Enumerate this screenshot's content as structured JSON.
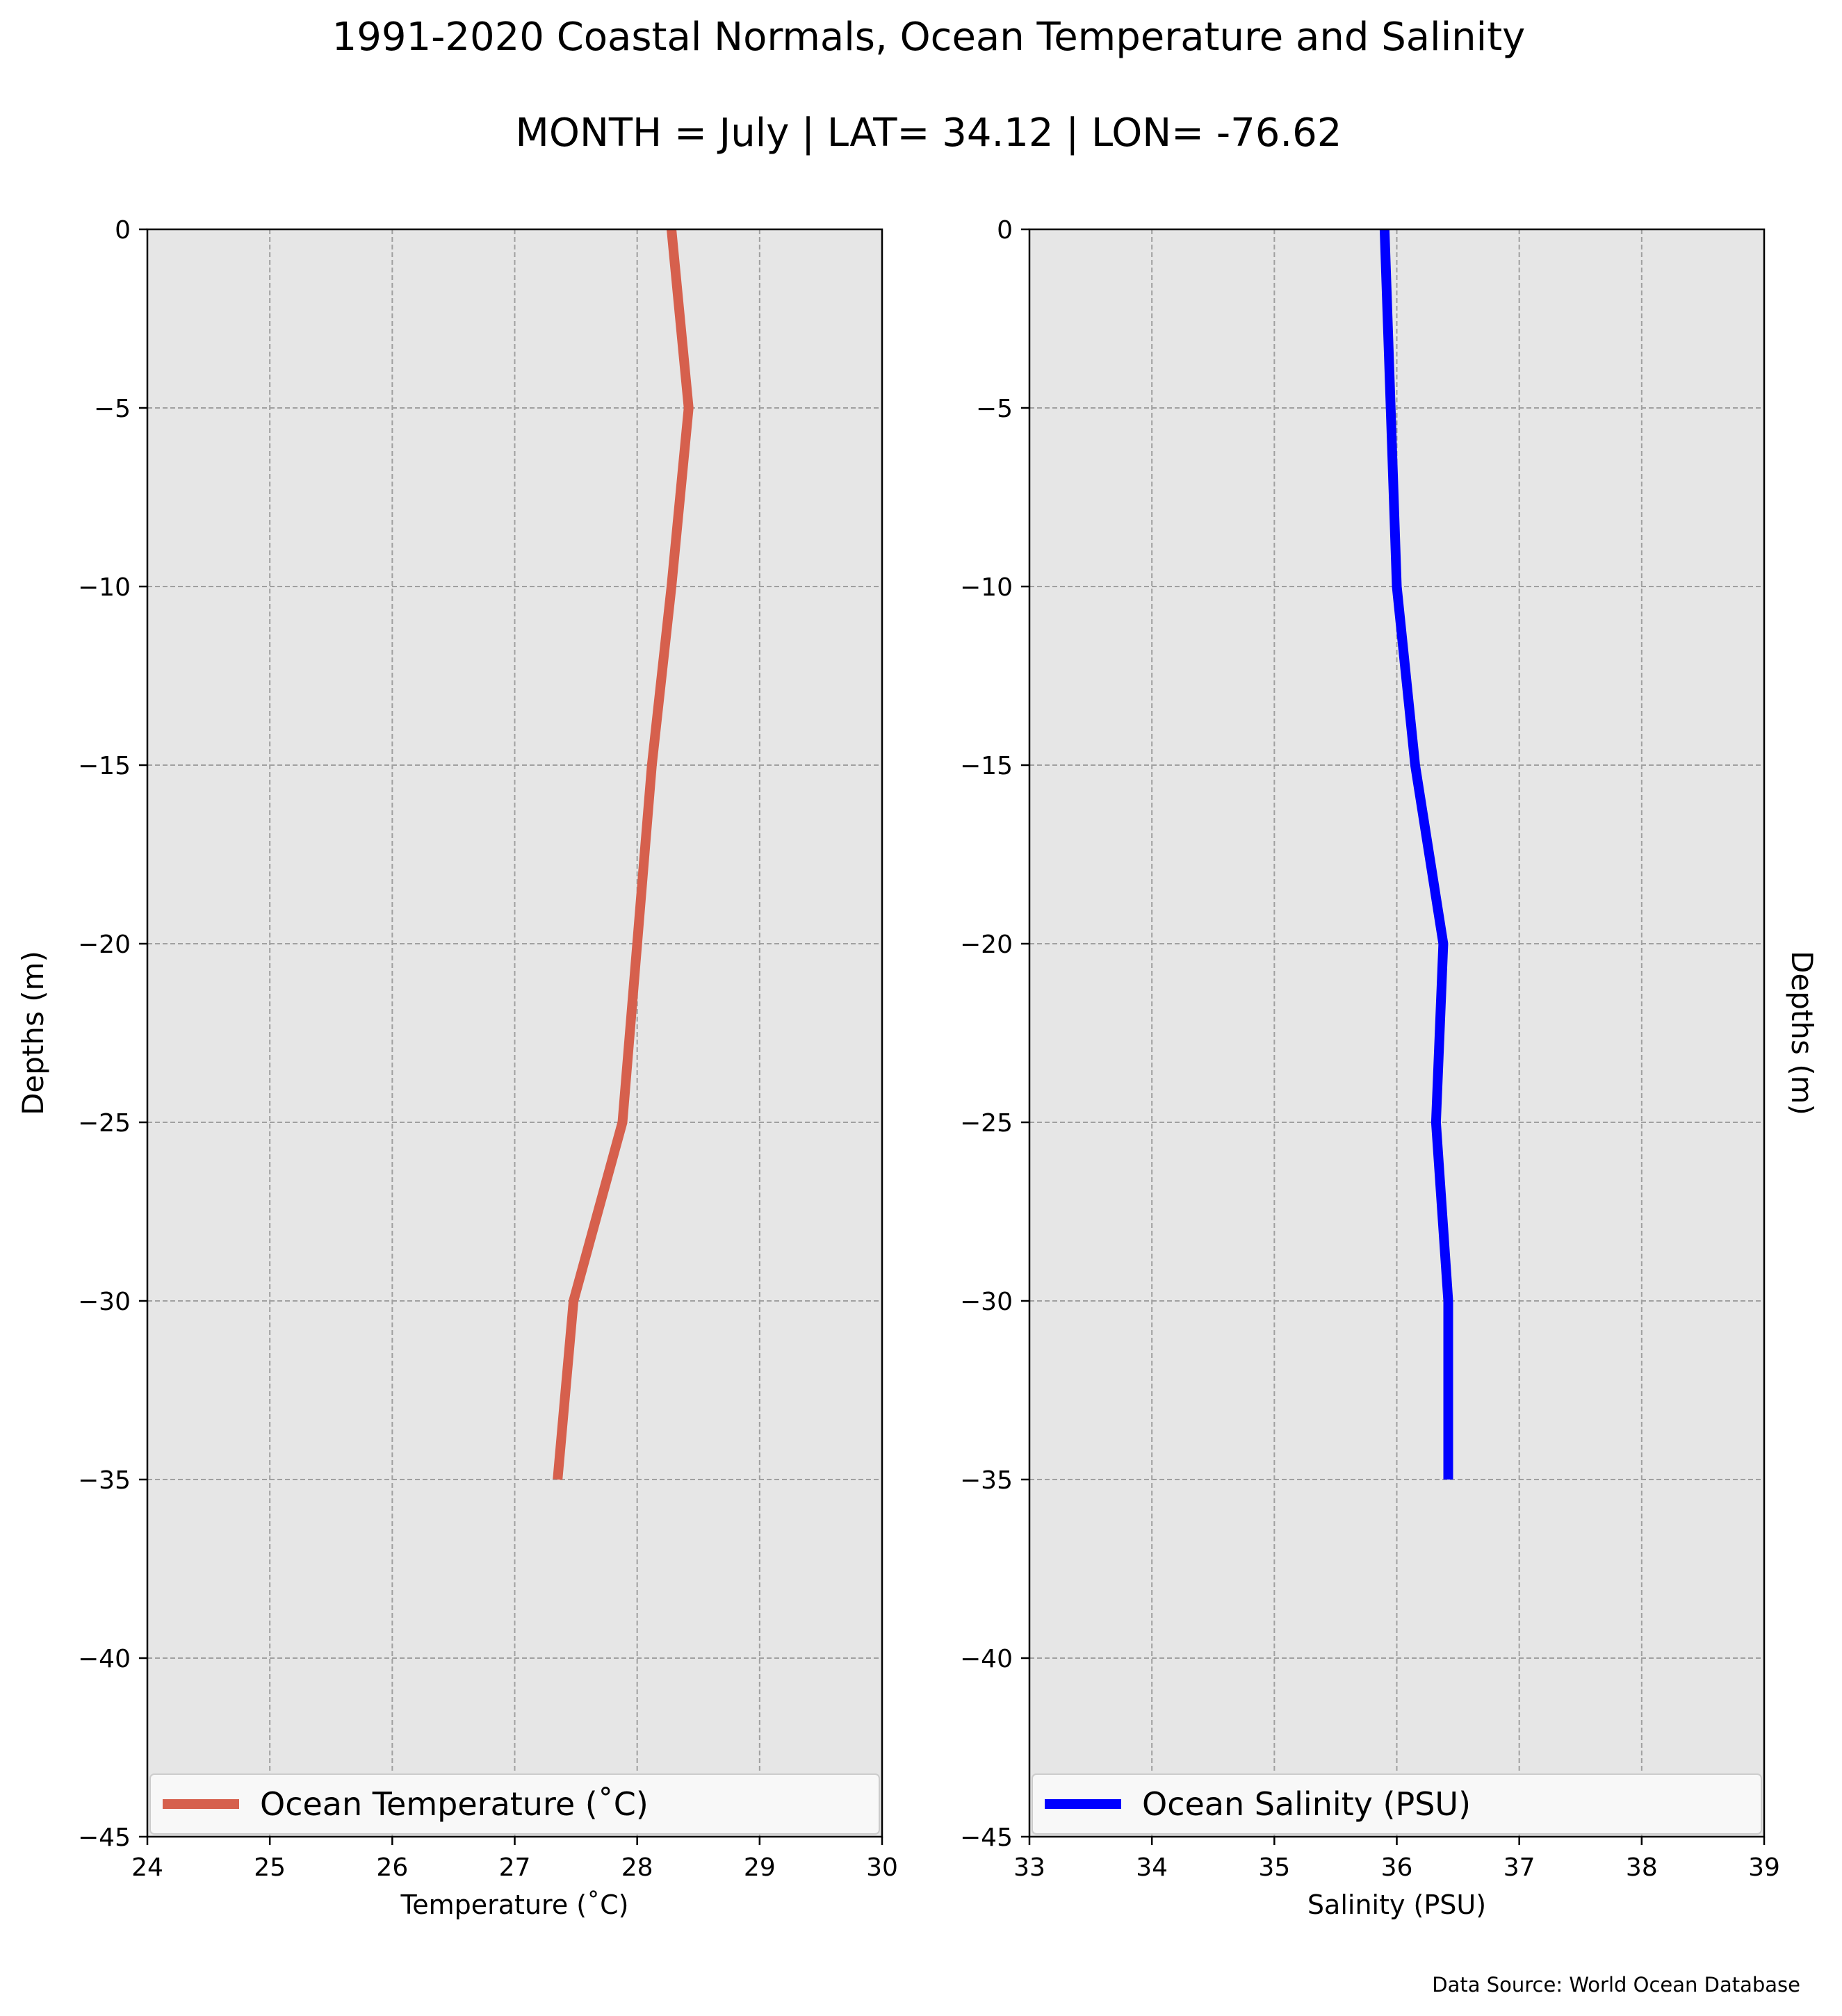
{
  "title": "1991-2020 Coastal Normals, Ocean Temperature and Salinity",
  "subtitle": "MONTH = July | LAT= 34.12 | LON= -76.62",
  "source_note": "Data Source: World Ocean Database",
  "chart_data": [
    {
      "type": "line",
      "xlabel": "Temperature ($^\\circ$C)",
      "xlabel_display": "Temperature (˚C)",
      "ylabel": "Depths (m)",
      "xlim": [
        24,
        30
      ],
      "ylim": [
        -45,
        0
      ],
      "xticks": [
        24,
        25,
        26,
        27,
        28,
        29,
        30
      ],
      "yticks": [
        0,
        -5,
        -10,
        -15,
        -20,
        -25,
        -30,
        -35,
        -40,
        -45
      ],
      "grid": true,
      "legend_position": "bottom",
      "series": [
        {
          "name": "Ocean Temperature (˚C)",
          "color": "#d6604d",
          "x": [
            28.28,
            28.42,
            28.28,
            28.12,
            28.0,
            27.88,
            27.48,
            27.35
          ],
          "y": [
            0,
            -5,
            -10,
            -15,
            -20,
            -25,
            -30,
            -35
          ]
        }
      ]
    },
    {
      "type": "line",
      "xlabel": "Salinity (PSU)",
      "ylabel": "Depths (m)",
      "xlim": [
        33,
        39
      ],
      "ylim": [
        -45,
        0
      ],
      "xticks": [
        33,
        34,
        35,
        36,
        37,
        38,
        39
      ],
      "yticks": [
        0,
        -5,
        -10,
        -15,
        -20,
        -25,
        -30,
        -35,
        -40,
        -45
      ],
      "grid": true,
      "legend_position": "bottom",
      "ylabel_side": "right",
      "series": [
        {
          "name": "Ocean Salinity (PSU)",
          "color": "#0000ff",
          "x": [
            35.9,
            35.95,
            36.0,
            36.15,
            36.38,
            36.32,
            36.42,
            36.42
          ],
          "y": [
            0,
            -5,
            -10,
            -15,
            -20,
            -25,
            -30,
            -35
          ]
        }
      ]
    }
  ]
}
